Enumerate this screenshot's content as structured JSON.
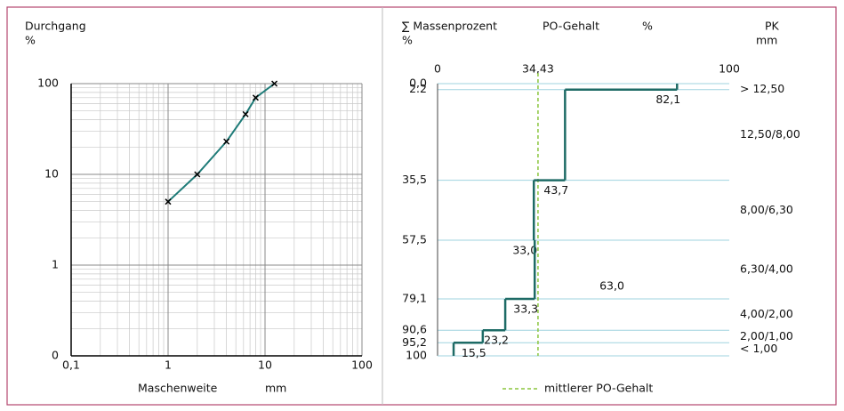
{
  "chart_data": [
    {
      "type": "line",
      "log_x": true,
      "log_y": true,
      "y_label": "Durchgang",
      "y_unit": "%",
      "x_label": "Maschenweite",
      "x_unit": "mm",
      "x": [
        1,
        2,
        4,
        6.3,
        8,
        12.5
      ],
      "series": [
        {
          "color": "#1e7b78",
          "values": [
            5,
            10,
            23,
            46,
            70,
            100
          ]
        }
      ],
      "xlim": [
        0.1,
        100
      ],
      "xticks": [
        {
          "value": 0.1,
          "label": "0,1"
        },
        1,
        10,
        100
      ],
      "ylim": [
        0.1,
        100
      ],
      "yticks": [
        {
          "value": 0.1,
          "label": "0"
        },
        1,
        10,
        100
      ],
      "grid": true
    },
    {
      "type": "step",
      "header_left": "∑ Massenprozent",
      "header_left_unit": "%",
      "header_mid": "PO-Gehalt",
      "header_mid_unit": "%",
      "header_right": "PK",
      "header_right_unit": "mm",
      "bins": [
        0,
        2.2,
        35.5,
        57.5,
        79.1,
        90.6,
        95.2,
        100
      ],
      "values": [
        82.1,
        43.7,
        33.0,
        33.3,
        23.2,
        15.5,
        5.5
      ],
      "value_labels": [
        "82,1",
        "43,7",
        "33,0",
        "33,3",
        "23,2",
        "15,5",
        null
      ],
      "categories": [
        "> 12,50",
        "12,50/8,00",
        "8,00/6,30",
        "6,30/4,00",
        "4,00/2,00",
        "2,00/1,00",
        "< 1,00"
      ],
      "color": "#1e6b66",
      "xlim": [
        0,
        100
      ],
      "xticks": [
        0,
        {
          "value": 34.43,
          "label": "34,43"
        },
        100
      ],
      "ylim": [
        0,
        100
      ],
      "yticks": [
        {
          "value": 0,
          "label": "0,0"
        },
        {
          "value": 2.2,
          "label": "2.2"
        },
        {
          "value": 35.5,
          "label": "35,5"
        },
        {
          "value": 57.5,
          "label": "57,5"
        },
        {
          "value": 79.1,
          "label": "79,1"
        },
        {
          "value": 90.6,
          "label": "90,6"
        },
        {
          "value": 95.2,
          "label": "95,2"
        },
        100
      ],
      "mean": 34.43,
      "mean_color": "#8cc63f",
      "mean_label": "mittlerer PO-Gehalt",
      "annotation": "63,0",
      "grid": true
    }
  ]
}
